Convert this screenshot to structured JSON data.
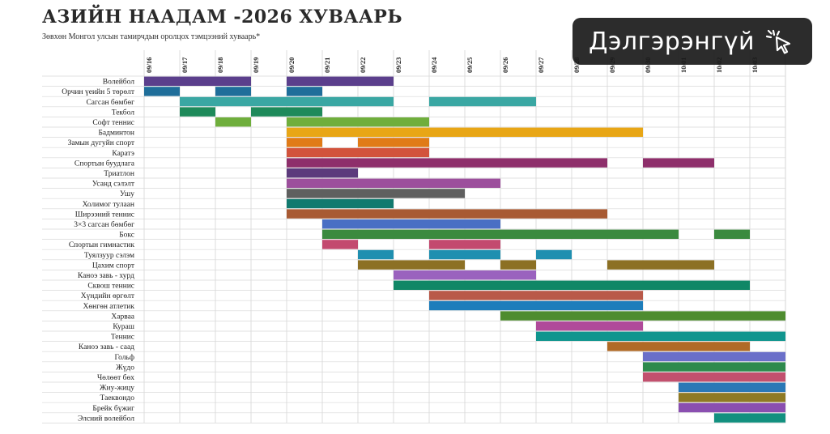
{
  "title": "АЗИЙН НААДАМ -2026 ХУВААРЬ",
  "subtitle": "Зөвхөн Монгол улсын тамирчдын оролцох тэмцээний хуваарь*",
  "button": {
    "label": "Дэлгэрэнгүй",
    "icon": "cursor-click-icon"
  },
  "chart_data": {
    "type": "gantt",
    "dates": [
      "09/16",
      "09/17",
      "09/18",
      "09/19",
      "09/20",
      "09/21",
      "09/22",
      "09/23",
      "09/24",
      "09/25",
      "09/26",
      "09/27",
      "09/28",
      "09/29",
      "09/30",
      "10/01",
      "10/02",
      "10/03"
    ],
    "sports": [
      {
        "name": "Волейбол",
        "color": "#5b3f8c",
        "spans": [
          [
            0,
            3
          ],
          [
            4,
            7
          ]
        ]
      },
      {
        "name": "Орчин үеийн 5 төрөлт",
        "color": "#1f6e9a",
        "spans": [
          [
            0,
            1
          ],
          [
            2,
            3
          ],
          [
            4,
            5
          ]
        ]
      },
      {
        "name": "Сагсан бөмбөг",
        "color": "#3aa7a3",
        "spans": [
          [
            1,
            7
          ],
          [
            8,
            11
          ]
        ]
      },
      {
        "name": "Текбол",
        "color": "#1e8a5a",
        "spans": [
          [
            1,
            2
          ],
          [
            3,
            5
          ]
        ]
      },
      {
        "name": "Софт теннис",
        "color": "#6fae3c",
        "spans": [
          [
            2,
            3
          ],
          [
            4,
            8
          ]
        ]
      },
      {
        "name": "Бадминтон",
        "color": "#e8a616",
        "spans": [
          [
            4,
            14
          ]
        ]
      },
      {
        "name": "Замын дугуйн спорт",
        "color": "#e07b17",
        "spans": [
          [
            4,
            5
          ],
          [
            6,
            8
          ]
        ]
      },
      {
        "name": "Каратэ",
        "color": "#d2533c",
        "spans": [
          [
            4,
            8
          ]
        ]
      },
      {
        "name": "Спортын буудлага",
        "color": "#8e2f6b",
        "spans": [
          [
            4,
            13
          ],
          [
            14,
            16
          ]
        ]
      },
      {
        "name": "Триатлон",
        "color": "#5c3a7c",
        "spans": [
          [
            4,
            6
          ]
        ]
      },
      {
        "name": "Усанд сэлэлт",
        "color": "#9c4f9c",
        "spans": [
          [
            4,
            10
          ]
        ]
      },
      {
        "name": "Ушу",
        "color": "#5f5f5f",
        "spans": [
          [
            4,
            9
          ]
        ]
      },
      {
        "name": "Холимог тулаан",
        "color": "#117a6f",
        "spans": [
          [
            4,
            7
          ]
        ]
      },
      {
        "name": "Ширээний теннис",
        "color": "#a85a33",
        "spans": [
          [
            4,
            13
          ]
        ]
      },
      {
        "name": "3×3 сагсан бөмбөг",
        "color": "#4a6fc4",
        "spans": [
          [
            5,
            10
          ]
        ]
      },
      {
        "name": "Бокс",
        "color": "#3b8a3f",
        "spans": [
          [
            5,
            15
          ],
          [
            16,
            17
          ]
        ]
      },
      {
        "name": "Спортын гимнастик",
        "color": "#c34a6f",
        "spans": [
          [
            5,
            6
          ],
          [
            8,
            10
          ]
        ]
      },
      {
        "name": "Туялзуур сэлэм",
        "color": "#1f8fb0",
        "spans": [
          [
            6,
            7
          ],
          [
            8,
            10
          ],
          [
            11,
            12
          ]
        ]
      },
      {
        "name": "Цахим спорт",
        "color": "#8c7024",
        "spans": [
          [
            6,
            9
          ],
          [
            10,
            11
          ],
          [
            13,
            16
          ]
        ]
      },
      {
        "name": "Каноэ завь - хурд",
        "color": "#9a62be",
        "spans": [
          [
            7,
            11
          ]
        ]
      },
      {
        "name": "Сквош теннис",
        "color": "#108766",
        "spans": [
          [
            7,
            17
          ]
        ]
      },
      {
        "name": "Хүндийн өргөлт",
        "color": "#b95949",
        "spans": [
          [
            8,
            14
          ]
        ]
      },
      {
        "name": "Хөнгөн атлетик",
        "color": "#1d7dbb",
        "spans": [
          [
            8,
            14
          ]
        ]
      },
      {
        "name": "Харваа",
        "color": "#4e8c2f",
        "spans": [
          [
            10,
            18
          ]
        ]
      },
      {
        "name": "Кураш",
        "color": "#b04a9a",
        "spans": [
          [
            11,
            14
          ]
        ]
      },
      {
        "name": "Теннис",
        "color": "#10958e",
        "spans": [
          [
            11,
            18
          ]
        ]
      },
      {
        "name": "Каноэ завь - саад",
        "color": "#b06a26",
        "spans": [
          [
            13,
            17
          ]
        ]
      },
      {
        "name": "Гольф",
        "color": "#6a6fc9",
        "spans": [
          [
            14,
            18
          ]
        ]
      },
      {
        "name": "Жүдо",
        "color": "#2e8a4d",
        "spans": [
          [
            14,
            18
          ]
        ]
      },
      {
        "name": "Чөлөөт бөх",
        "color": "#c2506e",
        "spans": [
          [
            14,
            18
          ]
        ]
      },
      {
        "name": "Жиу-жицу",
        "color": "#2a78b6",
        "spans": [
          [
            15,
            18
          ]
        ]
      },
      {
        "name": "Таеквондо",
        "color": "#8f7a24",
        "spans": [
          [
            15,
            18
          ]
        ]
      },
      {
        "name": "Брейк бүжиг",
        "color": "#8a4fb0",
        "spans": [
          [
            15,
            18
          ]
        ]
      },
      {
        "name": "Элсний волейбол",
        "color": "#12907f",
        "spans": [
          [
            16,
            18
          ]
        ]
      }
    ]
  }
}
